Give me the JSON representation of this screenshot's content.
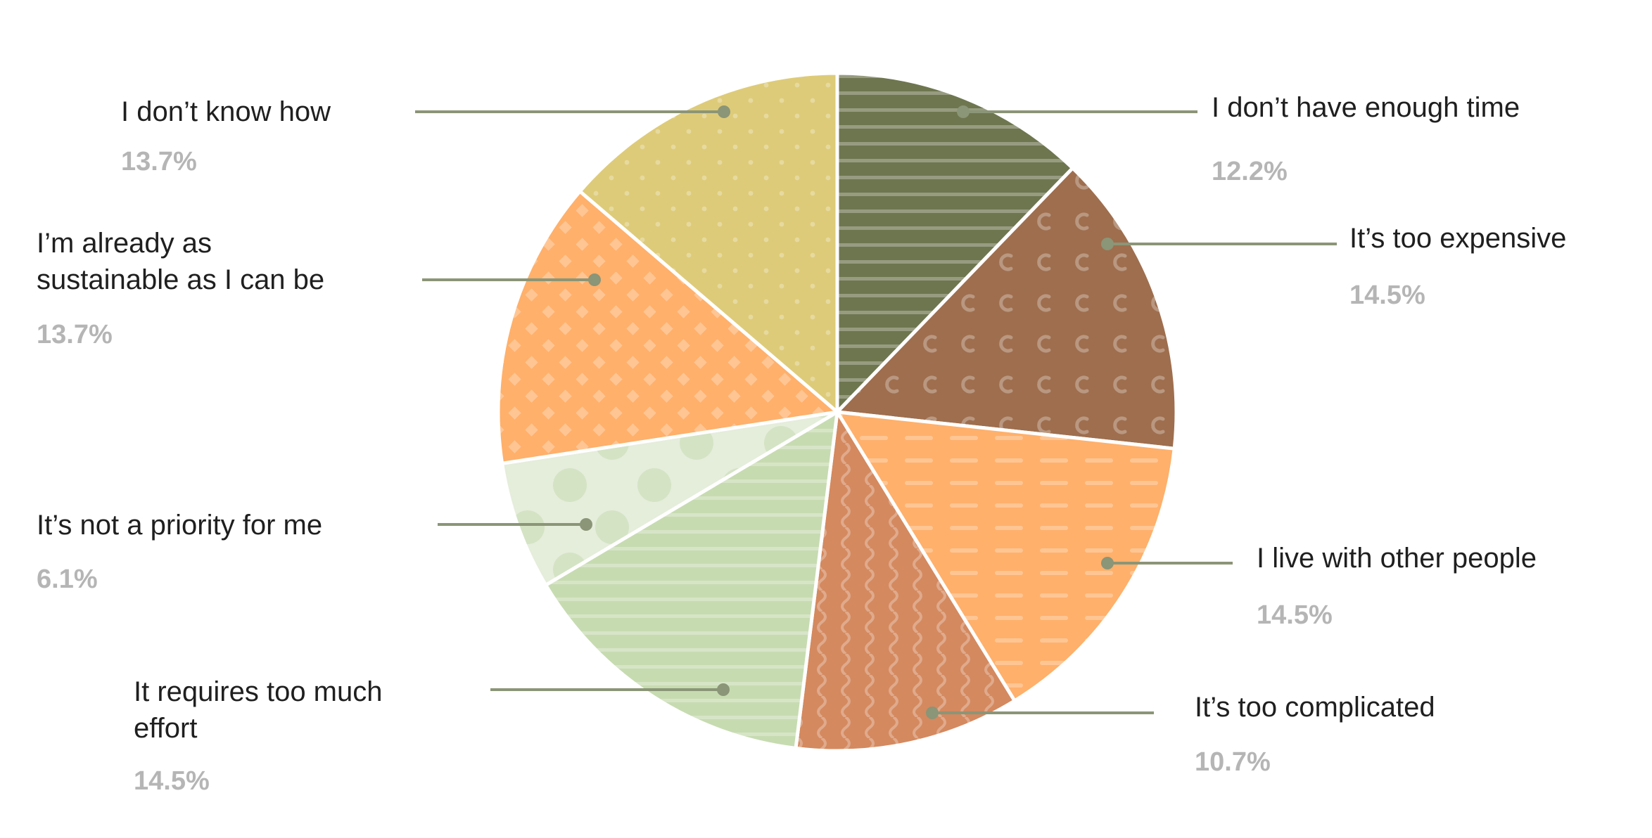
{
  "chart_data": {
    "type": "pie",
    "title": "",
    "slices": [
      {
        "label": "I don’t have enough time",
        "value": 12.2,
        "value_label": "12.2%",
        "color": "#6e7650",
        "pattern": "horizontal-stripes"
      },
      {
        "label": "It’s too expensive",
        "value": 14.5,
        "value_label": "14.5%",
        "color": "#9e6e4e",
        "pattern": "c-shapes"
      },
      {
        "label": "I live with other people",
        "value": 14.5,
        "value_label": "14.5%",
        "color": "#ffb06b",
        "pattern": "dashes"
      },
      {
        "label": "It’s too complicated",
        "value": 10.7,
        "value_label": "10.7%",
        "color": "#d4895f",
        "pattern": "wavy-lines"
      },
      {
        "label": "It requires too much effort",
        "value": 14.5,
        "value_label": "14.5%",
        "color": "#c7dbb1",
        "pattern": "horizontal-stripes"
      },
      {
        "label": "It’s not a priority for me",
        "value": 6.1,
        "value_label": "6.1%",
        "color": "#e5eddb",
        "pattern": "big-dots"
      },
      {
        "label": "I’m already as sustainable as I can be",
        "value": 13.7,
        "value_label": "13.7%",
        "color": "#ffb06b",
        "pattern": "diamonds"
      },
      {
        "label": "I don’t know how",
        "value": 13.7,
        "value_label": "13.7%",
        "color": "#decb79",
        "pattern": "small-dots"
      }
    ],
    "start_angle": "12 o'clock",
    "direction": "clockwise",
    "legend": "none (callout labels)",
    "leader_color": "#8b9577"
  }
}
